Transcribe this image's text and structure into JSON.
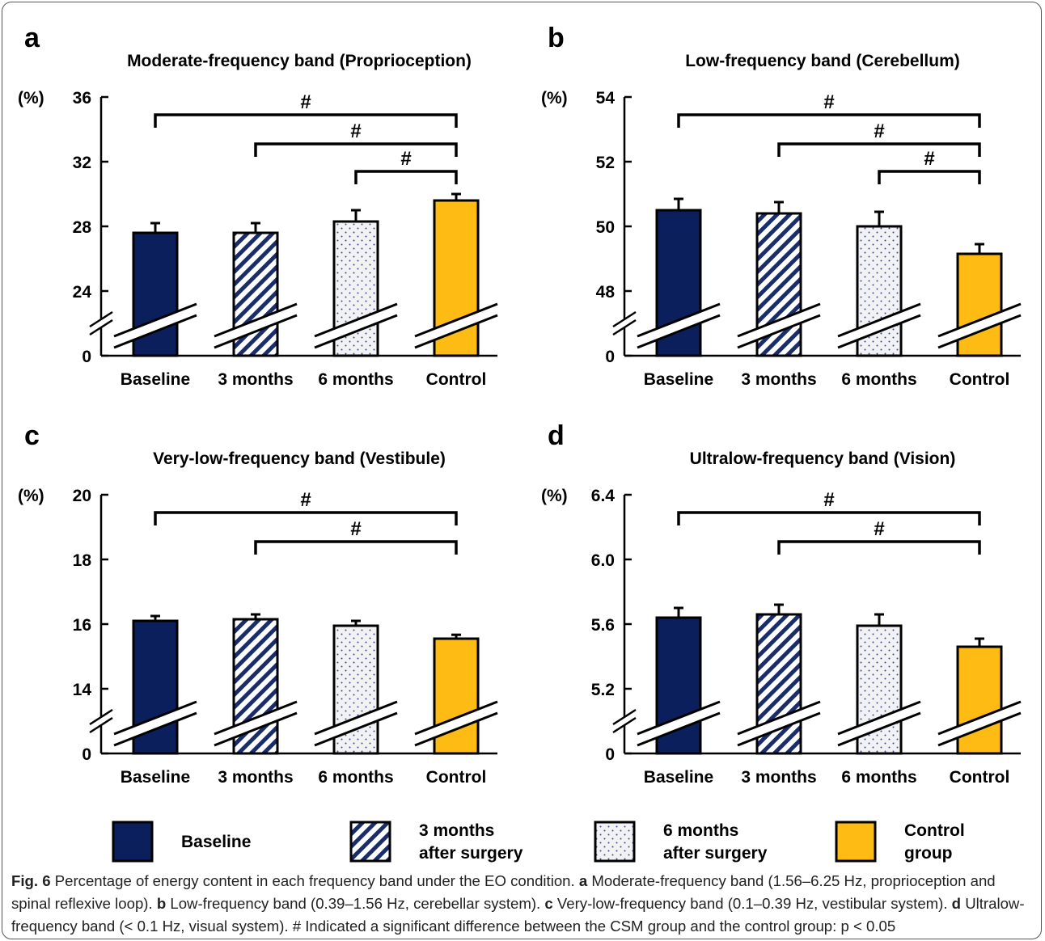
{
  "colors": {
    "baseline": "#0b1f5c",
    "three_months": "#1a2d6b",
    "six_months": "#f2f2f4",
    "control": "#fdbb14"
  },
  "chart_data": [
    {
      "panel": "a",
      "type": "bar",
      "title": "Moderate-frequency band (Proprioception)",
      "ylabel": "(%)",
      "categories": [
        "Baseline",
        "3 months",
        "6 months",
        "Control"
      ],
      "values": [
        27.6,
        27.6,
        28.3,
        29.6
      ],
      "errors": [
        0.6,
        0.6,
        0.7,
        0.4
      ],
      "yticks": [
        "36",
        "32",
        "28",
        "24",
        "0"
      ],
      "ylim": [
        24,
        36
      ],
      "axis_break": true,
      "significance": [
        {
          "from": "Baseline",
          "to": "Control",
          "label": "#"
        },
        {
          "from": "3 months",
          "to": "Control",
          "label": "#"
        },
        {
          "from": "6 months",
          "to": "Control",
          "label": "#"
        }
      ]
    },
    {
      "panel": "b",
      "type": "bar",
      "title": "Low-frequency band (Cerebellum)",
      "ylabel": "(%)",
      "categories": [
        "Baseline",
        "3 months",
        "6 months",
        "Control"
      ],
      "values": [
        50.5,
        50.4,
        50.0,
        49.15
      ],
      "errors": [
        0.35,
        0.35,
        0.45,
        0.3
      ],
      "yticks": [
        "54",
        "52",
        "50",
        "48",
        "0"
      ],
      "ylim": [
        48,
        54
      ],
      "axis_break": true,
      "significance": [
        {
          "from": "Baseline",
          "to": "Control",
          "label": "#"
        },
        {
          "from": "3 months",
          "to": "Control",
          "label": "#"
        },
        {
          "from": "6 months",
          "to": "Control",
          "label": "#"
        }
      ]
    },
    {
      "panel": "c",
      "type": "bar",
      "title": "Very-low-frequency band (Vestibule)",
      "ylabel": "(%)",
      "categories": [
        "Baseline",
        "3 months",
        "6 months",
        "Control"
      ],
      "values": [
        16.1,
        16.15,
        15.95,
        15.55
      ],
      "errors": [
        0.15,
        0.15,
        0.15,
        0.12
      ],
      "yticks": [
        "20",
        "18",
        "16",
        "14",
        "0"
      ],
      "ylim": [
        14,
        20
      ],
      "axis_break": true,
      "significance": [
        {
          "from": "Baseline",
          "to": "Control",
          "label": "#"
        },
        {
          "from": "3 months",
          "to": "Control",
          "label": "#"
        }
      ]
    },
    {
      "panel": "d",
      "type": "bar",
      "title": "Ultralow-frequency band (Vision)",
      "ylabel": "(%)",
      "categories": [
        "Baseline",
        "3 months",
        "6 months",
        "Control"
      ],
      "values": [
        5.64,
        5.66,
        5.59,
        5.46
      ],
      "errors": [
        0.06,
        0.06,
        0.07,
        0.05
      ],
      "yticks": [
        "6.4",
        "6.0",
        "5.6",
        "5.2",
        "0"
      ],
      "ylim": [
        5.2,
        6.4
      ],
      "axis_break": true,
      "significance": [
        {
          "from": "Baseline",
          "to": "Control",
          "label": "#"
        },
        {
          "from": "3 months",
          "to": "Control",
          "label": "#"
        }
      ]
    }
  ],
  "legend": [
    {
      "key": "baseline",
      "line1": "Baseline",
      "line2": ""
    },
    {
      "key": "three_months",
      "line1": "3 months",
      "line2": "after surgery"
    },
    {
      "key": "six_months",
      "line1": "6 months",
      "line2": "after surgery"
    },
    {
      "key": "control",
      "line1": "Control",
      "line2": "group"
    }
  ],
  "caption": {
    "fig_label": "Fig. 6",
    "text": " Percentage of energy content in each frequency band under the EO condition. ",
    "a_label": "a",
    "a_text": " Moderate-frequency band (1.56–6.25 Hz, proprioception and spinal reflexive loop). ",
    "b_label": "b",
    "b_text": " Low-frequency band (0.39–1.56 Hz, cerebellar system). ",
    "c_label": "c",
    "c_text": " Very-low-frequency band (0.1–0.39 Hz, vestibular system). ",
    "d_label": "d",
    "d_text": " Ultralow-frequency band (< 0.1 Hz, visual system). # Indicated a significant difference between the CSM group and the control group: p < 0.05"
  }
}
